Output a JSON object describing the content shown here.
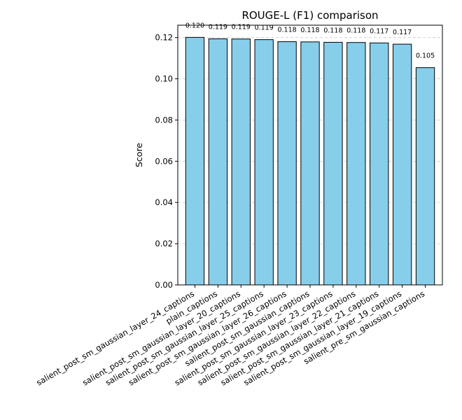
{
  "chart_data": {
    "type": "bar",
    "title": "ROUGE-L (F1) comparison",
    "xlabel": "",
    "ylabel": "Score",
    "categories": [
      "salient_post_sm_gaussian_layer_24_captions",
      "plain_captions",
      "salient_post_sm_gaussian_layer_20_captions",
      "salient_post_sm_gaussian_layer_25_captions",
      "salient_post_sm_gaussian_layer_26_captions",
      "salient_post_sm_gaussian_captions",
      "salient_post_sm_gaussian_layer_23_captions",
      "salient_post_sm_gaussian_layer_22_captions",
      "salient_post_sm_gaussian_layer_21_captions",
      "salient_post_sm_gaussian_layer_19_captions",
      "salient_pre_sm_gaussian_captions"
    ],
    "values": [
      0.1201,
      0.1194,
      0.1193,
      0.119,
      0.118,
      0.1179,
      0.1177,
      0.1176,
      0.1174,
      0.1168,
      0.1054
    ],
    "value_labels": [
      "0.120",
      "0.119",
      "0.119",
      "0.119",
      "0.118",
      "0.118",
      "0.118",
      "0.118",
      "0.117",
      "0.117",
      "0.105"
    ],
    "yticks": [
      "0.00",
      "0.02",
      "0.04",
      "0.06",
      "0.08",
      "0.10",
      "0.12"
    ],
    "ylim": [
      0,
      0.126
    ],
    "grid": "y-dashed",
    "bar_color": "#87ceeb",
    "bar_edge_color": "#000000"
  }
}
